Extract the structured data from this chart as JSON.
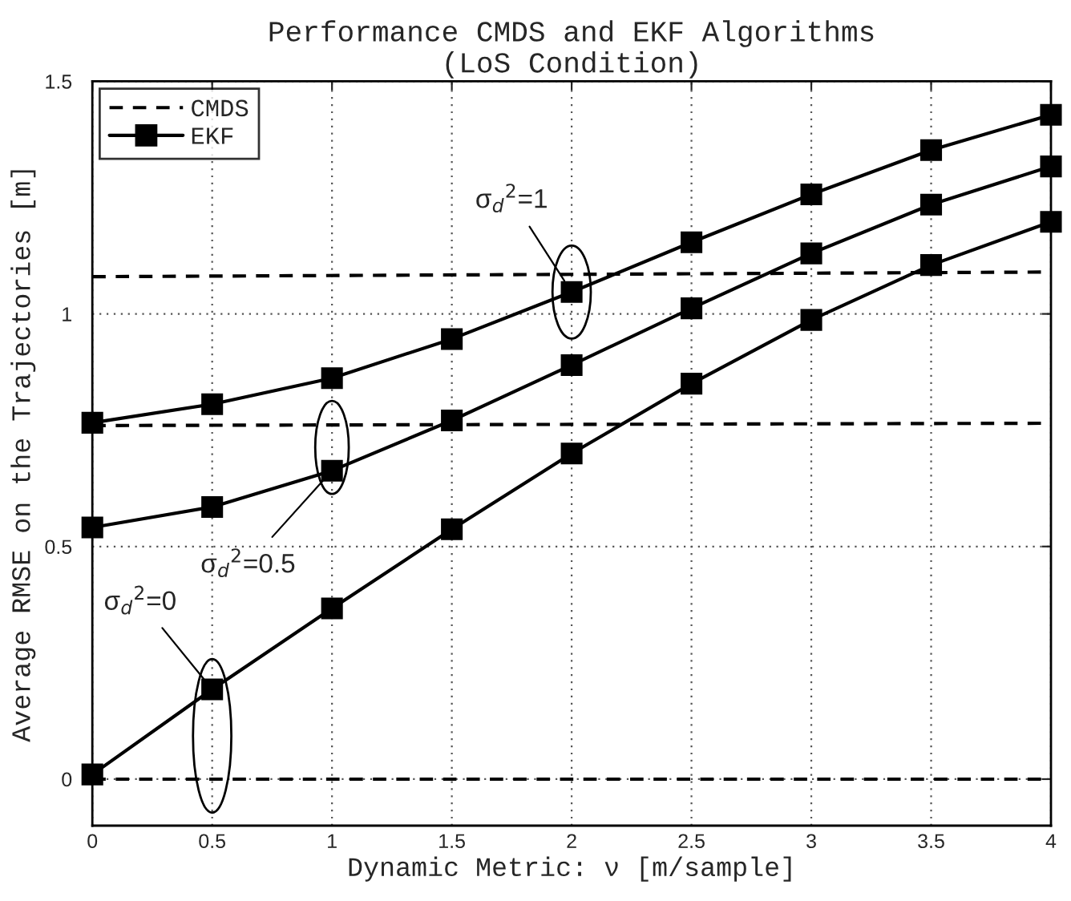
{
  "chart_data": {
    "type": "line",
    "title": "Performance CMDS and EKF Algorithms\n(LoS Condition)",
    "xlabel": "Dynamic Metric: ν [m/sample]",
    "ylabel": "Average RMSE on the Trajectories [m]",
    "series": [
      {
        "name": "CMDS",
        "color": "#000000",
        "line_style": "dashed",
        "marker": "none",
        "x": [
          0,
          4
        ],
        "values": [
          1.08,
          1.09
        ]
      },
      {
        "color": "#000000",
        "line_style": "dashed",
        "marker": "none",
        "x": [
          0,
          4
        ],
        "values": [
          0.76,
          0.765
        ]
      },
      {
        "color": "#000000",
        "line_style": "dashed",
        "marker": "none",
        "x": [
          0,
          4
        ],
        "values": [
          0,
          0
        ]
      },
      {
        "name": "EKF",
        "color": "#000000",
        "line_style": "solid",
        "marker": "square",
        "x": [
          0,
          0.5,
          1,
          1.5,
          2,
          2.5,
          3,
          3.5,
          4
        ],
        "values": [
          0.766,
          0.806,
          0.862,
          0.946,
          1.047,
          1.154,
          1.257,
          1.352,
          1.428
        ]
      },
      {
        "color": "#000000",
        "line_style": "solid",
        "marker": "square",
        "x": [
          0,
          0.5,
          1,
          1.5,
          2,
          2.5,
          3,
          3.5,
          4
        ],
        "values": [
          0.541,
          0.585,
          0.663,
          0.771,
          0.89,
          1.012,
          1.13,
          1.235,
          1.317
        ]
      },
      {
        "color": "#000000",
        "line_style": "solid",
        "marker": "square",
        "x": [
          0,
          0.5,
          1,
          1.5,
          2,
          2.5,
          3,
          3.5,
          4
        ],
        "values": [
          0.01,
          0.193,
          0.367,
          0.537,
          0.7,
          0.85,
          0.987,
          1.105,
          1.198
        ]
      }
    ],
    "annotations": [
      {
        "text": "σ$_{d}$$^{2}$=1",
        "x": 2,
        "y": 1.047
      },
      {
        "text": "σ$_{d}$$^{2}$=0.5",
        "x": 1,
        "y": 0.663
      },
      {
        "text": "σ$_{d}$$^{2}$=0",
        "x": 0.5,
        "y": 0.193
      }
    ],
    "xlim": [
      0,
      4
    ],
    "xticks": [
      0,
      0.5,
      1,
      1.5,
      2,
      2.5,
      3,
      3.5,
      4
    ],
    "ylim": [
      -0.1,
      1.5
    ],
    "yticks": [
      0,
      0.5,
      1,
      1.5
    ],
    "grid": true,
    "legend": "top left"
  }
}
